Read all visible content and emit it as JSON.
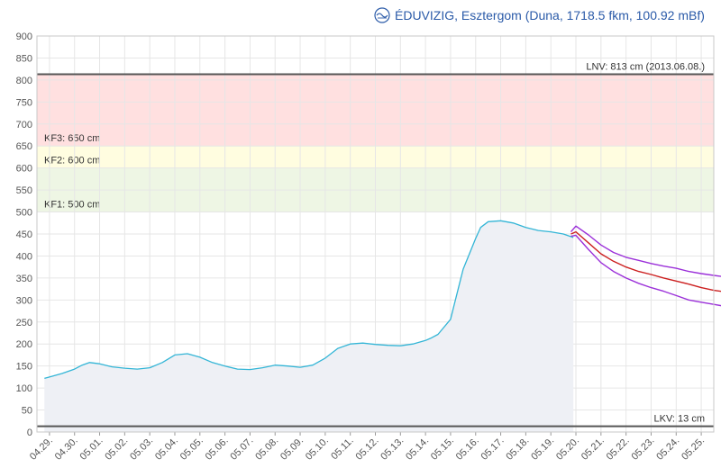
{
  "header": {
    "title": "ÉDUVIZIG, Esztergom (Duna, 1718.5 fkm, 100.92 mBf)",
    "logo_icon": "eduvizig-logo-icon"
  },
  "colors": {
    "measured": "#33b5d6",
    "forecast_mid": "#cc1f1f",
    "forecast_band": "#9b30d9",
    "zone_kf3": "#ffe0e0",
    "zone_kf2": "#fffde0",
    "zone_kf1": "#eef6e4",
    "limit_line": "#555555",
    "grid": "#e6e6e6",
    "area_fill": "#eef0f5"
  },
  "chart_data": {
    "type": "line",
    "title": "ÉDUVIZIG, Esztergom (Duna, 1718.5 fkm, 100.92 mBf)",
    "xlabel": "",
    "ylabel": "",
    "ylim": [
      0,
      900
    ],
    "yticks": [
      0,
      50,
      100,
      150,
      200,
      250,
      300,
      350,
      400,
      450,
      500,
      550,
      600,
      650,
      700,
      750,
      800,
      850,
      900
    ],
    "xticks": [
      "04.29.",
      "04.30.",
      "05.01.",
      "05.02.",
      "05.03.",
      "05.04.",
      "05.05.",
      "05.06.",
      "05.07.",
      "05.08.",
      "05.09.",
      "05.10.",
      "05.11.",
      "05.12.",
      "05.13.",
      "05.14.",
      "05.15.",
      "05.16.",
      "05.17.",
      "05.18.",
      "05.19.",
      "05.20.",
      "05.21.",
      "05.22.",
      "05.23.",
      "05.24.",
      "05.25."
    ],
    "grid": true,
    "thresholds": [
      {
        "name": "LNV",
        "value": 813,
        "label": "LNV: 813 cm (2013.06.08.)"
      },
      {
        "name": "LKV",
        "value": 13,
        "label": "LKV: 13 cm"
      }
    ],
    "zones": [
      {
        "name": "KF3",
        "from": 650,
        "to": 813,
        "label": "KF3: 650 cm"
      },
      {
        "name": "KF2",
        "from": 600,
        "to": 650,
        "label": "KF2: 600 cm"
      },
      {
        "name": "KF1",
        "from": 500,
        "to": 600,
        "label": "KF1: 500 cm"
      }
    ],
    "series": [
      {
        "role": "measured",
        "x": [
          -0.2,
          0.0,
          0.5,
          1.0,
          1.3,
          1.6,
          2.0,
          2.5,
          3.0,
          3.5,
          4.0,
          4.5,
          5.0,
          5.5,
          6.0,
          6.5,
          7.0,
          7.5,
          8.0,
          8.5,
          9.0,
          9.5,
          10.0,
          10.5,
          11.0,
          11.5,
          12.0,
          12.5,
          13.0,
          13.5,
          14.0,
          14.5,
          15.0,
          15.2,
          15.5,
          16.0,
          16.5,
          17.0,
          17.2,
          17.5,
          18.0,
          18.5,
          19.0,
          19.5,
          20.0,
          20.5,
          20.9
        ],
        "y": [
          122,
          125,
          133,
          143,
          152,
          158,
          155,
          148,
          145,
          143,
          146,
          158,
          175,
          178,
          170,
          158,
          150,
          143,
          142,
          146,
          152,
          150,
          147,
          152,
          168,
          190,
          200,
          202,
          199,
          197,
          196,
          200,
          208,
          213,
          222,
          256,
          370,
          440,
          465,
          478,
          480,
          475,
          465,
          458,
          455,
          450,
          442
        ]
      },
      {
        "role": "forecast_mid",
        "x": [
          20.8,
          21.0,
          21.5,
          22.0,
          22.5,
          23.0,
          23.5,
          24.0,
          24.5,
          25.0,
          25.5,
          26.0,
          26.5,
          27.0
        ],
        "y": [
          450,
          455,
          430,
          405,
          388,
          375,
          365,
          358,
          350,
          343,
          336,
          328,
          322,
          318
        ]
      },
      {
        "role": "forecast_upper",
        "x": [
          20.8,
          21.0,
          21.5,
          22.0,
          22.5,
          23.0,
          23.5,
          24.0,
          24.5,
          25.0,
          25.5,
          26.0,
          26.5,
          27.0
        ],
        "y": [
          455,
          468,
          448,
          425,
          408,
          397,
          390,
          383,
          377,
          372,
          365,
          360,
          356,
          352
        ]
      },
      {
        "role": "forecast_lower",
        "x": [
          20.8,
          21.0,
          21.5,
          22.0,
          22.5,
          23.0,
          23.5,
          24.0,
          24.5,
          25.0,
          25.5,
          26.0,
          26.5,
          27.0
        ],
        "y": [
          445,
          447,
          415,
          385,
          365,
          350,
          338,
          328,
          320,
          310,
          300,
          295,
          290,
          285
        ]
      }
    ]
  }
}
